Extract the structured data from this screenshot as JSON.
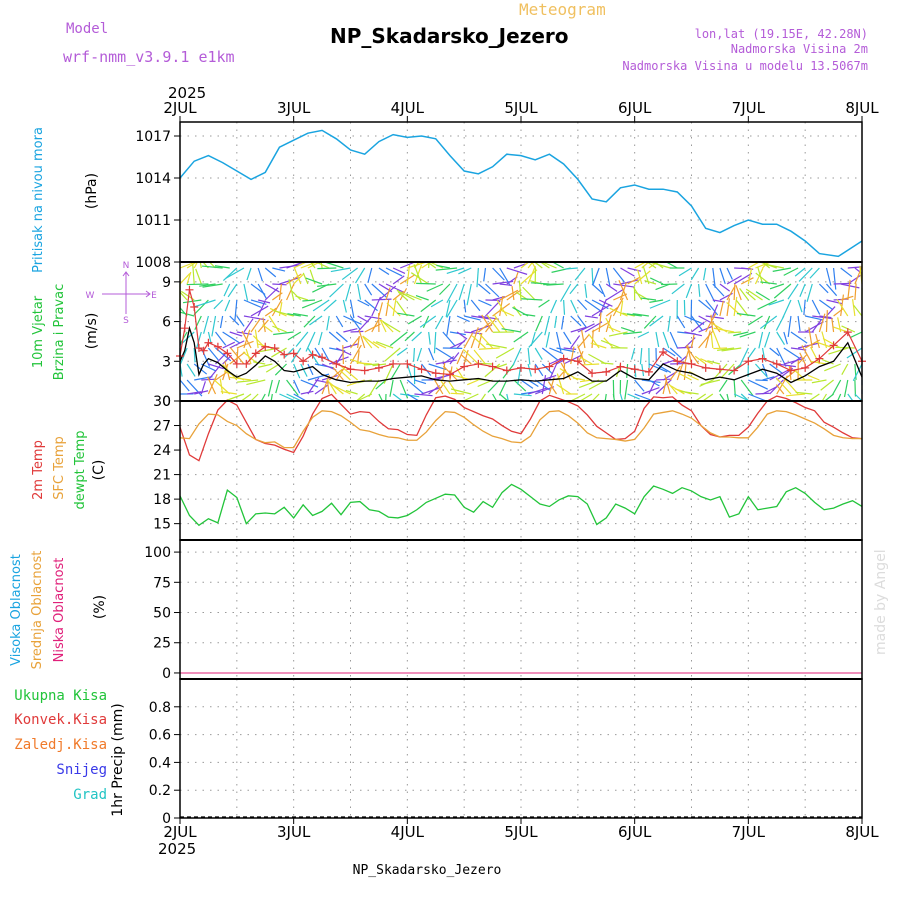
{
  "header": {
    "model_label": "Model",
    "model_name": "wrf-nmm_v3.9.1 e1km",
    "meteogram_label": "Meteogram",
    "station": "NP_Skadarsko_Jezero",
    "lonlat": "lon,lat (19.15E, 42.28N)",
    "altitude": "Nadmorska Visina 2m",
    "model_altitude": "Nadmorska Visina u modelu 13.5067m",
    "year_top": "2025",
    "year_bottom": "2025",
    "footer_station": "NP_Skadarsko_Jezero",
    "watermark": "made by Angel"
  },
  "colors": {
    "pressure": "#1aa4e0",
    "temp2m": "#e03a3a",
    "sfc": "#e8a23a",
    "dewpt": "#22c43a",
    "wind_speed": "#000000",
    "gust": "#e03a3a",
    "grid": "#9a9a9a",
    "wind_label": "#22c43a",
    "cloud_high": "#1aa4e0",
    "cloud_mid": "#e8a23a",
    "cloud_low": "#e0207a",
    "prec_total": "#22c43a",
    "prec_conv": "#e03a3a",
    "prec_frz": "#f07a2a",
    "prec_snow": "#3a3ae8",
    "prec_grad": "#22c4c4",
    "purple": "#b45cd8"
  },
  "chart_data": [
    {
      "type": "line",
      "panel": "pressure",
      "ylabel_1": "Pritisak na nivou mora",
      "ylabel_2": "(hPa)",
      "x_categories": [
        "2JUL",
        "3JUL",
        "4JUL",
        "5JUL",
        "6JUL",
        "7JUL",
        "8JUL"
      ],
      "ylim": [
        1008,
        1018
      ],
      "yticks": [
        1008,
        1011,
        1014,
        1017
      ],
      "x_hours": [
        0,
        3,
        6,
        9,
        12,
        15,
        18,
        21,
        24,
        27,
        30,
        33,
        36,
        39,
        42,
        45,
        48,
        51,
        54,
        57,
        60,
        63,
        66,
        69,
        72,
        75,
        78,
        81,
        84,
        87,
        90,
        93,
        96,
        99,
        102,
        105,
        108,
        111,
        114,
        117,
        120,
        123,
        126,
        129,
        132,
        135,
        139,
        144
      ],
      "series": [
        {
          "values": [
            1014.0,
            1015.2,
            1015.6,
            1015.1,
            1014.5,
            1013.9,
            1014.4,
            1016.2,
            1016.7,
            1017.2,
            1017.4,
            1016.8,
            1016.0,
            1015.7,
            1016.6,
            1017.1,
            1016.9,
            1017.0,
            1016.8,
            1015.6,
            1014.5,
            1014.3,
            1014.8,
            1015.7,
            1015.6,
            1015.3,
            1015.7,
            1015.0,
            1013.9,
            1012.5,
            1012.3,
            1013.3,
            1013.5,
            1013.2,
            1013.2,
            1013.0,
            1012.0,
            1010.4,
            1010.1,
            1010.6,
            1011.0,
            1010.7,
            1010.7,
            1010.2,
            1009.5,
            1008.6,
            1008.4,
            1009.5
          ]
        }
      ]
    },
    {
      "type": "line",
      "panel": "wind",
      "ylabel_1": "10m Vjetar",
      "ylabel_2": "Brzina i Pravac",
      "ylabel_3": "(m/s)",
      "compass_n": "N",
      "compass_s": "S",
      "compass_w": "W",
      "compass_e": "E",
      "ylim": [
        0,
        10.5
      ],
      "yticks": [
        0,
        3,
        6,
        9
      ],
      "x_hours": [
        0,
        1,
        2,
        3,
        4,
        5,
        6,
        8,
        10,
        12,
        14,
        16,
        18,
        20,
        22,
        24,
        26,
        28,
        30,
        33,
        36,
        39,
        42,
        45,
        48,
        51,
        54,
        57,
        60,
        63,
        66,
        69,
        72,
        75,
        78,
        81,
        84,
        87,
        90,
        93,
        96,
        99,
        102,
        105,
        108,
        111,
        114,
        117,
        120,
        123,
        126,
        129,
        132,
        135,
        138,
        141,
        144
      ],
      "series": [
        {
          "name": "speed",
          "values": [
            3.0,
            3.8,
            5.5,
            4.4,
            2.0,
            2.8,
            3.2,
            2.9,
            2.3,
            1.8,
            2.1,
            2.7,
            3.4,
            3.0,
            2.3,
            2.2,
            2.4,
            2.6,
            2.0,
            1.6,
            1.4,
            1.5,
            1.5,
            1.7,
            1.8,
            1.9,
            1.6,
            1.5,
            1.6,
            1.7,
            1.5,
            1.5,
            1.6,
            1.5,
            1.6,
            1.7,
            2.2,
            1.5,
            1.5,
            2.3,
            1.7,
            1.6,
            2.8,
            2.3,
            2.1,
            1.6,
            1.8,
            1.6,
            2.0,
            2.4,
            2.1,
            1.4,
            1.9,
            2.6,
            3.0,
            4.4,
            1.8
          ]
        },
        {
          "name": "gust",
          "values": [
            3.4,
            5.5,
            8.4,
            7.1,
            4.0,
            3.8,
            4.4,
            4.1,
            3.6,
            2.8,
            2.8,
            3.6,
            4.1,
            4.0,
            3.5,
            3.6,
            3.0,
            3.5,
            3.3,
            2.8,
            2.4,
            2.3,
            2.5,
            2.8,
            2.8,
            2.4,
            2.1,
            2.0,
            2.6,
            2.8,
            2.6,
            2.3,
            2.5,
            2.4,
            2.6,
            3.2,
            3.0,
            2.1,
            2.2,
            2.6,
            2.4,
            2.2,
            3.7,
            3.0,
            2.8,
            2.5,
            2.4,
            2.3,
            3.0,
            3.2,
            2.8,
            2.3,
            2.5,
            3.2,
            4.2,
            5.2,
            3.0
          ]
        }
      ]
    },
    {
      "type": "line",
      "panel": "temperature",
      "ylabel_1": "2m Temp",
      "ylabel_2": "SFC Temp",
      "ylabel_3": "dewpt Temp",
      "ylabel_4": "(C)",
      "ylim": [
        13,
        30
      ],
      "yticks": [
        15,
        18,
        21,
        24,
        27,
        30
      ],
      "x_hours": [
        0,
        2,
        4,
        6,
        8,
        10,
        12,
        14,
        16,
        18,
        20,
        22,
        24,
        26,
        28,
        30,
        32,
        34,
        36,
        38,
        40,
        42,
        44,
        46,
        48,
        50,
        52,
        54,
        56,
        58,
        60,
        62,
        64,
        66,
        68,
        70,
        72,
        74,
        76,
        78,
        80,
        82,
        84,
        86,
        88,
        90,
        92,
        94,
        96,
        98,
        100,
        102,
        104,
        106,
        108,
        110,
        112,
        114,
        116,
        118,
        120,
        122,
        124,
        126,
        128,
        130,
        132,
        134,
        136,
        138,
        140,
        142,
        144
      ],
      "series": [
        {
          "name": "2m",
          "values": [
            26.8,
            23.4,
            22.7,
            26.0,
            28.9,
            30.1,
            29.5,
            27.4,
            25.3,
            24.8,
            24.6,
            24.1,
            23.7,
            25.7,
            28.4,
            30.3,
            30.8,
            29.6,
            28.4,
            28.7,
            28.6,
            27.5,
            26.6,
            26.5,
            25.9,
            25.8,
            28.3,
            30.4,
            30.6,
            30.2,
            29.2,
            28.7,
            28.2,
            27.8,
            27.0,
            26.3,
            26.0,
            27.8,
            30.0,
            30.7,
            30.3,
            29.9,
            29.4,
            28.3,
            26.9,
            26.1,
            25.3,
            25.4,
            26.3,
            29.1,
            30.5,
            30.4,
            30.5,
            29.5,
            28.8,
            27.0,
            25.9,
            25.6,
            25.8,
            25.8,
            26.8,
            28.5,
            30.0,
            30.6,
            30.3,
            29.8,
            29.2,
            28.8,
            27.4,
            26.8,
            26.1,
            25.5,
            25.4
          ]
        },
        {
          "name": "sfc",
          "values": [
            25.5,
            25.4,
            27.2,
            28.4,
            28.3,
            27.5,
            27.0,
            26.0,
            25.3,
            24.9,
            25.0,
            24.3,
            24.3,
            26.3,
            28.0,
            28.8,
            28.7,
            28.2,
            27.4,
            26.5,
            26.3,
            25.9,
            25.6,
            25.5,
            25.2,
            25.2,
            26.2,
            27.6,
            28.7,
            28.6,
            28.0,
            27.1,
            26.3,
            25.7,
            25.4,
            25.0,
            24.9,
            25.7,
            27.7,
            28.7,
            28.8,
            28.2,
            27.3,
            26.1,
            25.5,
            25.4,
            25.3,
            25.1,
            25.3,
            26.7,
            28.4,
            28.6,
            28.8,
            28.4,
            27.9,
            27.0,
            26.1,
            25.6,
            25.6,
            25.5,
            25.5,
            26.8,
            28.4,
            28.8,
            28.7,
            28.3,
            27.8,
            27.3,
            26.6,
            25.8,
            25.5,
            25.4,
            25.4
          ]
        },
        {
          "name": "dewpt",
          "values": [
            18.4,
            16.0,
            14.8,
            15.6,
            15.1,
            19.1,
            18.2,
            15.0,
            16.2,
            16.3,
            16.2,
            17.0,
            15.7,
            17.3,
            16.0,
            16.5,
            17.5,
            16.1,
            17.6,
            17.7,
            16.7,
            16.5,
            15.8,
            15.7,
            16.0,
            16.7,
            17.6,
            18.1,
            18.6,
            18.5,
            17.0,
            16.4,
            17.7,
            17.0,
            18.8,
            19.8,
            19.2,
            18.3,
            17.4,
            17.1,
            17.9,
            18.4,
            18.3,
            17.4,
            14.9,
            15.7,
            17.4,
            16.9,
            16.2,
            18.3,
            19.6,
            19.2,
            18.7,
            19.4,
            19.0,
            18.3,
            17.9,
            18.3,
            15.8,
            16.2,
            18.3,
            16.7,
            16.9,
            17.1,
            18.9,
            19.4,
            18.7,
            17.6,
            16.7,
            16.9,
            17.4,
            17.8,
            17.1
          ]
        }
      ]
    },
    {
      "type": "line",
      "panel": "clouds",
      "ylabel_1": "Visoka Oblacnost",
      "ylabel_2": "Srednja Oblacnost",
      "ylabel_3": "Niska Oblacnost",
      "ylabel_4": "(%)",
      "ylim": [
        -5,
        110
      ],
      "yticks": [
        0,
        25,
        50,
        75,
        100
      ],
      "series": [
        {
          "name": "high",
          "values": [
            0,
            0
          ]
        },
        {
          "name": "mid",
          "values": [
            0,
            0
          ]
        },
        {
          "name": "low",
          "values": [
            0,
            0
          ]
        }
      ]
    },
    {
      "type": "bar",
      "panel": "precipitation",
      "ylabel_1": "1hr Precip",
      "ylabel_2": "(mm)",
      "labels": [
        "Ukupna Kisa",
        "Konvek.Kisa",
        "Zaledj.Kisa",
        "Snijeg",
        "Grad"
      ],
      "ylim": [
        0,
        1.0
      ],
      "yticks": [
        0,
        0.2,
        0.4,
        0.6,
        0.8
      ],
      "ytick_labels": [
        "0",
        "0.2",
        "0.4",
        "0.6",
        "0.8"
      ],
      "values": [
        0,
        0,
        0,
        0,
        0
      ]
    }
  ]
}
